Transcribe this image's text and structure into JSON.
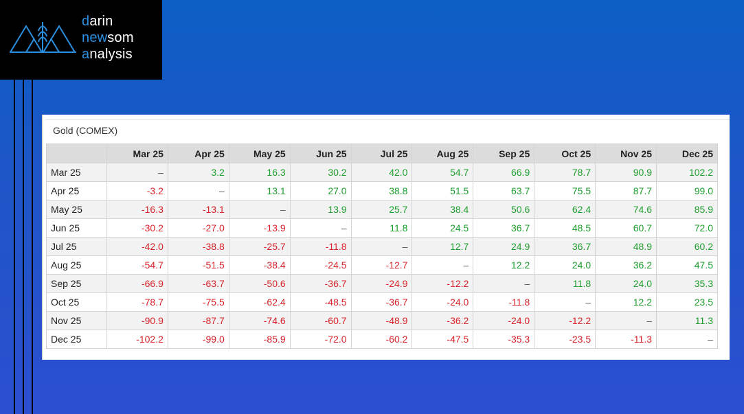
{
  "logo": {
    "line1_initial": "d",
    "line1_rest": "arin",
    "line2_pre": "n",
    "line2_mid": "ew",
    "line2_rest": "som",
    "line3_initial": "a",
    "line3_rest": "nalysis"
  },
  "table": {
    "title": "Gold (COMEX)",
    "columns": [
      "Mar 25",
      "Apr 25",
      "May 25",
      "Jun 25",
      "Jul 25",
      "Aug 25",
      "Sep 25",
      "Oct 25",
      "Nov 25",
      "Dec 25"
    ],
    "rows": [
      {
        "label": "Mar 25",
        "values": [
          "–",
          "3.2",
          "16.3",
          "30.2",
          "42.0",
          "54.7",
          "66.9",
          "78.7",
          "90.9",
          "102.2"
        ]
      },
      {
        "label": "Apr 25",
        "values": [
          "-3.2",
          "–",
          "13.1",
          "27.0",
          "38.8",
          "51.5",
          "63.7",
          "75.5",
          "87.7",
          "99.0"
        ]
      },
      {
        "label": "May 25",
        "values": [
          "-16.3",
          "-13.1",
          "–",
          "13.9",
          "25.7",
          "38.4",
          "50.6",
          "62.4",
          "74.6",
          "85.9"
        ]
      },
      {
        "label": "Jun 25",
        "values": [
          "-30.2",
          "-27.0",
          "-13.9",
          "–",
          "11.8",
          "24.5",
          "36.7",
          "48.5",
          "60.7",
          "72.0"
        ]
      },
      {
        "label": "Jul 25",
        "values": [
          "-42.0",
          "-38.8",
          "-25.7",
          "-11.8",
          "–",
          "12.7",
          "24.9",
          "36.7",
          "48.9",
          "60.2"
        ]
      },
      {
        "label": "Aug 25",
        "values": [
          "-54.7",
          "-51.5",
          "-38.4",
          "-24.5",
          "-12.7",
          "–",
          "12.2",
          "24.0",
          "36.2",
          "47.5"
        ]
      },
      {
        "label": "Sep 25",
        "values": [
          "-66.9",
          "-63.7",
          "-50.6",
          "-36.7",
          "-24.9",
          "-12.2",
          "–",
          "11.8",
          "24.0",
          "35.3"
        ]
      },
      {
        "label": "Oct 25",
        "values": [
          "-78.7",
          "-75.5",
          "-62.4",
          "-48.5",
          "-36.7",
          "-24.0",
          "-11.8",
          "–",
          "12.2",
          "23.5"
        ]
      },
      {
        "label": "Nov 25",
        "values": [
          "-90.9",
          "-87.7",
          "-74.6",
          "-60.7",
          "-48.9",
          "-36.2",
          "-24.0",
          "-12.2",
          "–",
          "11.3"
        ]
      },
      {
        "label": "Dec 25",
        "values": [
          "-102.2",
          "-99.0",
          "-85.9",
          "-72.0",
          "-60.2",
          "-47.5",
          "-35.3",
          "-23.5",
          "-11.3",
          "–"
        ]
      }
    ]
  },
  "colors": {
    "positive": "#1e9e2e",
    "negative": "#d8232a",
    "logo_accent": "#2b8fe0"
  },
  "icons": {
    "logo_mark": "mountain-wheat-logo-icon"
  }
}
